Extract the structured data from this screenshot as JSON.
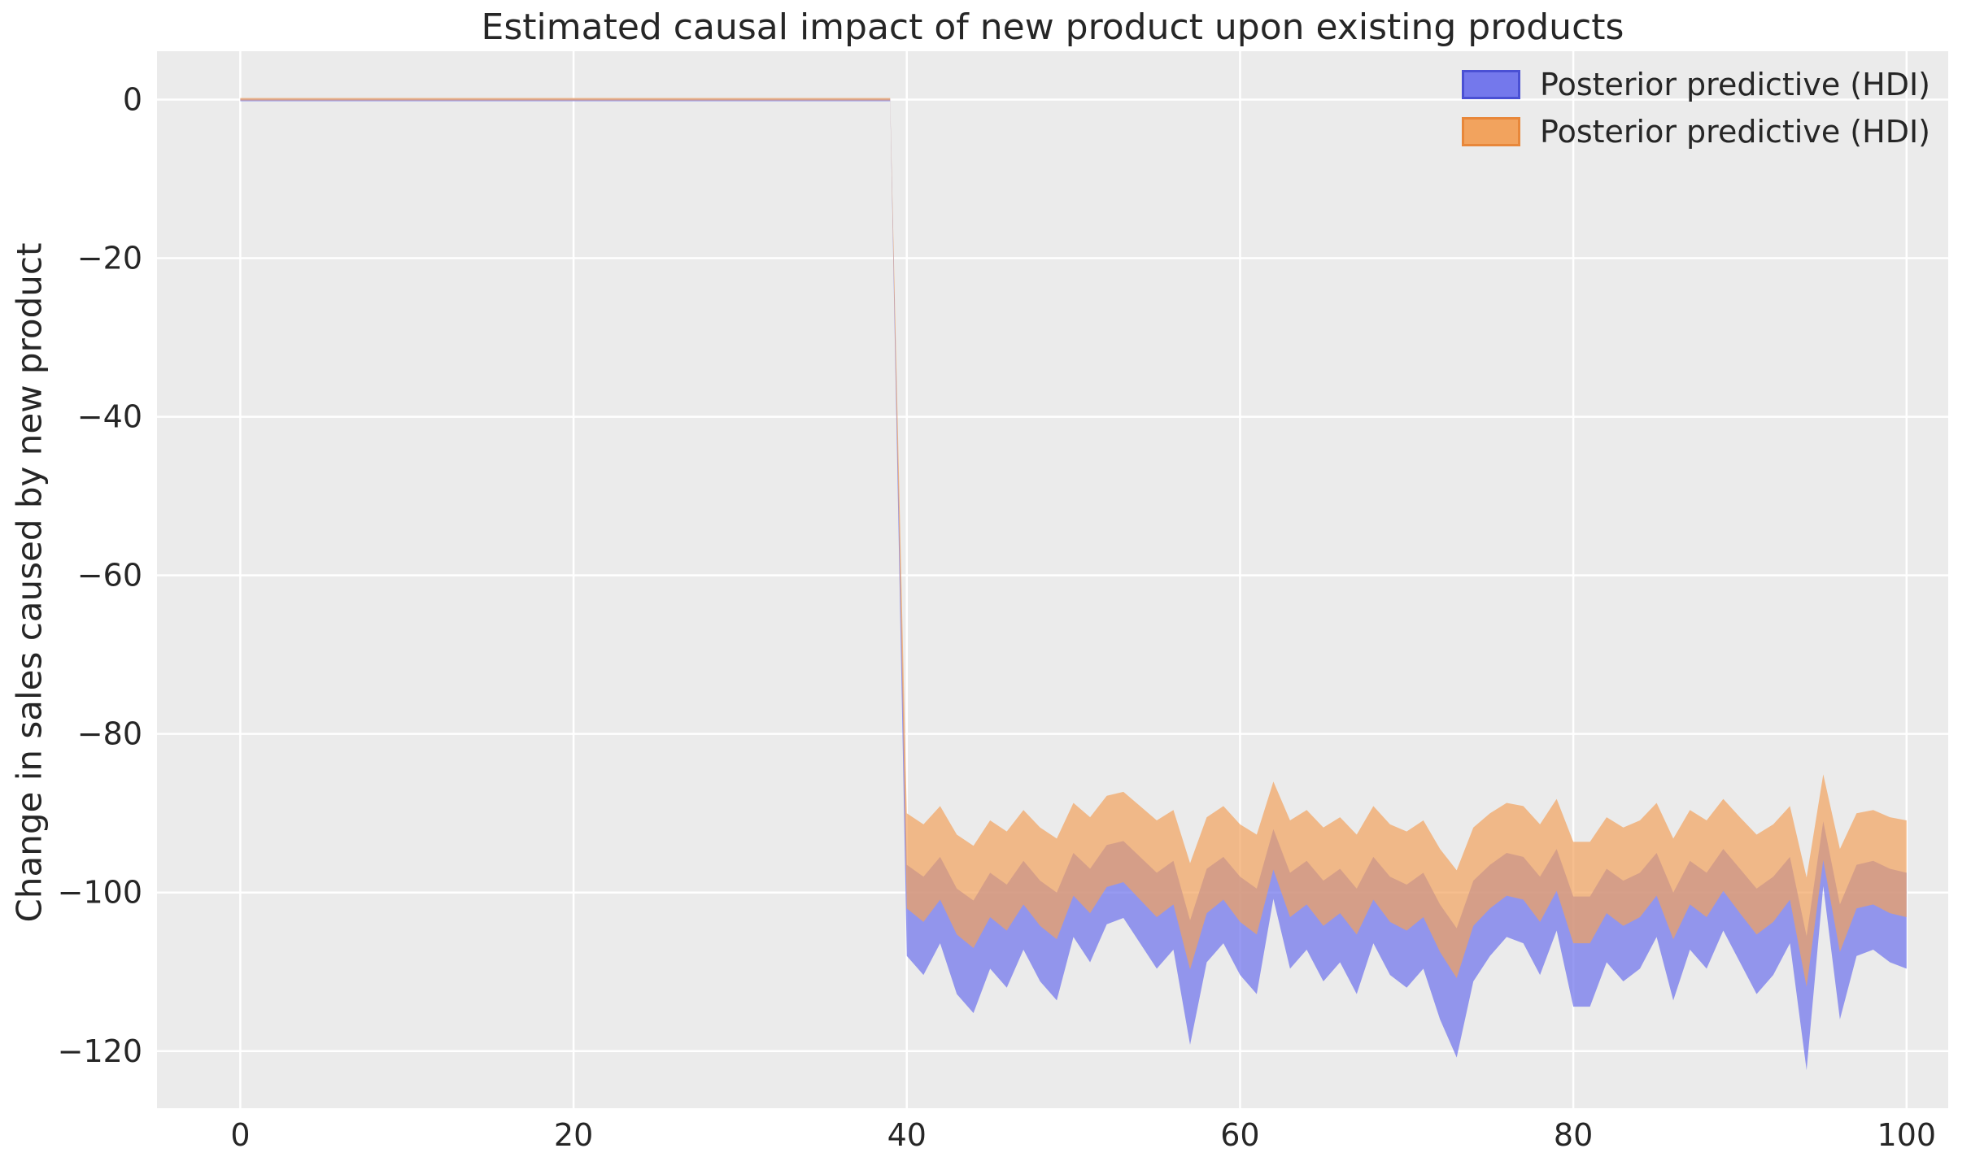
{
  "chart_data": {
    "type": "area",
    "title": "Estimated causal impact of new product upon existing products",
    "xlabel": "",
    "ylabel": "Change in sales caused by new product",
    "xlim": [
      -5,
      102.5
    ],
    "ylim": [
      -127.2,
      6.1
    ],
    "xticks": [
      0,
      20,
      40,
      60,
      80,
      100
    ],
    "yticks": [
      0,
      -20,
      -40,
      -60,
      -80,
      -100,
      -120
    ],
    "grid": true,
    "legend_position": "upper right",
    "axes_background": "#ebebeb",
    "grid_color": "#ffffff",
    "tick_color": "#262626",
    "series": [
      {
        "name": "Posterior predictive (HDI)",
        "fill": "#7478ec",
        "edge": "#4a50d4",
        "opacity": 0.75
      },
      {
        "name": "Posterior predictive (HDI)",
        "fill": "#f2a35e",
        "edge": "#e8873a",
        "opacity": 0.7
      }
    ],
    "x": [
      0,
      1,
      2,
      3,
      4,
      5,
      6,
      7,
      8,
      9,
      10,
      11,
      12,
      13,
      14,
      15,
      16,
      17,
      18,
      19,
      20,
      21,
      22,
      23,
      24,
      25,
      26,
      27,
      28,
      29,
      30,
      31,
      32,
      33,
      34,
      35,
      36,
      37,
      38,
      39,
      40,
      41,
      42,
      43,
      44,
      45,
      46,
      47,
      48,
      49,
      50,
      51,
      52,
      53,
      54,
      55,
      56,
      57,
      58,
      59,
      60,
      61,
      62,
      63,
      64,
      65,
      66,
      67,
      68,
      69,
      70,
      71,
      72,
      73,
      74,
      75,
      76,
      77,
      78,
      79,
      80,
      81,
      82,
      83,
      84,
      85,
      86,
      87,
      88,
      89,
      90,
      91,
      92,
      93,
      94,
      95,
      96,
      97,
      98,
      99,
      100
    ],
    "blue_upper": [
      0.1,
      0.1,
      0.1,
      0.1,
      0.1,
      0.1,
      0.1,
      0.1,
      0.1,
      0.1,
      0.1,
      0.1,
      0.1,
      0.1,
      0.1,
      0.1,
      0.1,
      0.1,
      0.1,
      0.1,
      0.1,
      0.1,
      0.1,
      0.1,
      0.1,
      0.1,
      0.1,
      0.1,
      0.1,
      0.1,
      0.1,
      0.1,
      0.1,
      0.1,
      0.1,
      0.1,
      0.1,
      0.1,
      0.1,
      0.1,
      -96.5,
      -98.0,
      -95.5,
      -99.5,
      -101.0,
      -97.5,
      -99.0,
      -96.0,
      -98.5,
      -100.0,
      -95.0,
      -97.0,
      -94.0,
      -93.5,
      -95.5,
      -97.5,
      -96.0,
      -103.5,
      -97.0,
      -95.5,
      -98.0,
      -99.5,
      -92.0,
      -97.5,
      -96.0,
      -98.5,
      -97.0,
      -99.5,
      -95.5,
      -98.0,
      -99.0,
      -97.5,
      -101.5,
      -104.5,
      -98.5,
      -96.5,
      -95.0,
      -95.5,
      -98.0,
      -94.5,
      -100.5,
      -100.5,
      -97.0,
      -98.5,
      -97.5,
      -95.0,
      -100.0,
      -96.0,
      -97.5,
      -94.5,
      -97.0,
      -99.5,
      -98.0,
      -95.5,
      -105.5,
      -91.0,
      -101.5,
      -96.5,
      -96.0,
      -97.0,
      -97.5
    ],
    "blue_lower": [
      -0.2,
      -0.2,
      -0.2,
      -0.2,
      -0.2,
      -0.2,
      -0.2,
      -0.2,
      -0.2,
      -0.2,
      -0.2,
      -0.2,
      -0.2,
      -0.2,
      -0.2,
      -0.2,
      -0.2,
      -0.2,
      -0.2,
      -0.2,
      -0.2,
      -0.2,
      -0.2,
      -0.2,
      -0.2,
      -0.2,
      -0.2,
      -0.2,
      -0.2,
      -0.2,
      -0.2,
      -0.2,
      -0.2,
      -0.2,
      -0.2,
      -0.2,
      -0.2,
      -0.2,
      -0.2,
      -0.2,
      -108.0,
      -110.4,
      -106.4,
      -112.8,
      -115.2,
      -109.6,
      -112.0,
      -107.2,
      -111.2,
      -113.6,
      -105.6,
      -108.8,
      -104.0,
      -103.2,
      -106.4,
      -109.6,
      -107.2,
      -119.2,
      -108.8,
      -106.4,
      -110.4,
      -112.8,
      -100.8,
      -109.6,
      -107.2,
      -111.2,
      -108.8,
      -112.8,
      -106.4,
      -110.4,
      -112.0,
      -109.6,
      -116.0,
      -120.8,
      -111.2,
      -108.0,
      -105.6,
      -106.4,
      -110.4,
      -104.8,
      -114.4,
      -114.4,
      -108.8,
      -111.2,
      -109.6,
      -105.6,
      -113.6,
      -107.2,
      -109.6,
      -104.8,
      -108.8,
      -112.8,
      -110.4,
      -106.4,
      -122.4,
      -99.2,
      -116.0,
      -108.0,
      -107.2,
      -108.8,
      -109.6
    ],
    "orange_upper": [
      0.2,
      0.2,
      0.2,
      0.2,
      0.2,
      0.2,
      0.2,
      0.2,
      0.2,
      0.2,
      0.2,
      0.2,
      0.2,
      0.2,
      0.2,
      0.2,
      0.2,
      0.2,
      0.2,
      0.2,
      0.2,
      0.2,
      0.2,
      0.2,
      0.2,
      0.2,
      0.2,
      0.2,
      0.2,
      0.2,
      0.2,
      0.2,
      0.2,
      0.2,
      0.2,
      0.2,
      0.2,
      0.2,
      0.2,
      0.2,
      -90.0,
      -91.4,
      -89.1,
      -92.7,
      -94.1,
      -90.9,
      -92.3,
      -89.6,
      -91.8,
      -93.2,
      -88.7,
      -90.5,
      -87.8,
      -87.3,
      -89.1,
      -90.9,
      -89.6,
      -96.3,
      -90.5,
      -89.1,
      -91.4,
      -92.7,
      -86.0,
      -90.9,
      -89.6,
      -91.8,
      -90.5,
      -92.7,
      -89.1,
      -91.4,
      -92.3,
      -90.9,
      -94.5,
      -97.2,
      -91.8,
      -90.0,
      -88.7,
      -89.1,
      -91.4,
      -88.2,
      -93.6,
      -93.6,
      -90.5,
      -91.8,
      -90.9,
      -88.7,
      -93.2,
      -89.6,
      -90.9,
      -88.2,
      -90.5,
      -92.7,
      -91.4,
      -89.1,
      -98.1,
      -85.1,
      -94.5,
      -90.0,
      -89.6,
      -90.5,
      -90.9
    ],
    "orange_lower": [
      -0.1,
      -0.1,
      -0.1,
      -0.1,
      -0.1,
      -0.1,
      -0.1,
      -0.1,
      -0.1,
      -0.1,
      -0.1,
      -0.1,
      -0.1,
      -0.1,
      -0.1,
      -0.1,
      -0.1,
      -0.1,
      -0.1,
      -0.1,
      -0.1,
      -0.1,
      -0.1,
      -0.1,
      -0.1,
      -0.1,
      -0.1,
      -0.1,
      -0.1,
      -0.1,
      -0.1,
      -0.1,
      -0.1,
      -0.1,
      -0.1,
      -0.1,
      -0.1,
      -0.1,
      -0.1,
      -0.1,
      -102.0,
      -103.7,
      -100.9,
      -105.3,
      -107.0,
      -103.1,
      -104.8,
      -101.5,
      -104.2,
      -105.9,
      -100.4,
      -102.6,
      -99.3,
      -98.7,
      -100.9,
      -103.1,
      -101.5,
      -109.7,
      -102.6,
      -100.9,
      -103.7,
      -105.3,
      -97.1,
      -103.1,
      -101.5,
      -104.2,
      -102.6,
      -105.3,
      -100.9,
      -103.7,
      -104.8,
      -103.1,
      -107.5,
      -110.8,
      -104.2,
      -102.0,
      -100.4,
      -100.9,
      -103.7,
      -99.8,
      -106.4,
      -106.4,
      -102.6,
      -104.2,
      -103.1,
      -100.4,
      -105.9,
      -101.5,
      -103.1,
      -99.8,
      -102.6,
      -105.3,
      -103.7,
      -100.9,
      -111.9,
      -95.9,
      -107.5,
      -102.0,
      -101.5,
      -102.6,
      -103.1
    ]
  }
}
